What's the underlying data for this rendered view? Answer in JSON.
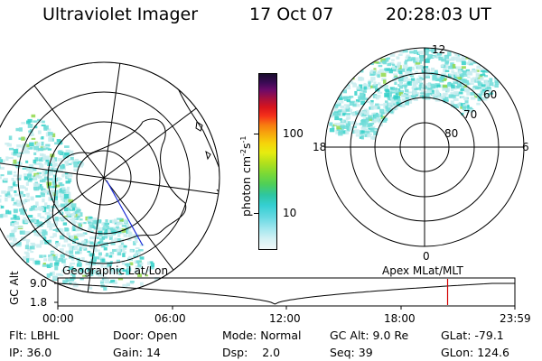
{
  "header": {
    "title": "Ultraviolet Imager",
    "date": "17 Oct 07",
    "time": "20:28:03 UT"
  },
  "left_map": {
    "label": "Geographic Lat/Lon"
  },
  "right_map": {
    "label": "Apex MLat/MLT",
    "mlt_labels": [
      "12",
      "18",
      "6",
      "0"
    ],
    "mlat_labels": [
      "60",
      "70",
      "80"
    ]
  },
  "colorbar": {
    "unit": "photon cm",
    "unit_exp1": "-2",
    "unit_mid": "s",
    "unit_exp2": "-1",
    "ticks": [
      "100",
      "10"
    ]
  },
  "altitude_strip": {
    "ylabel": "GC Alt",
    "y_ticks": [
      "9.0",
      "1.8"
    ],
    "x_ticks": [
      "00:00",
      "06:00",
      "12:00",
      "18:00",
      "23:59"
    ],
    "marker_time": "20:28"
  },
  "info": {
    "filter_label": "Flt:",
    "filter_value": "LBHL",
    "door_label": "Door:",
    "door_value": "Open",
    "mode_label": "Mode:",
    "mode_value": "Normal",
    "gcalt_label": "GC Alt:",
    "gcalt_value": "9.0 Re",
    "glat_label": "GLat:",
    "glat_value": "-79.1",
    "ip_label": "IP:",
    "ip_value": "36.0",
    "gain_label": "Gain:",
    "gain_value": "14",
    "dsp_label": "Dsp:",
    "dsp_value": "2.0",
    "seq_label": "Seq:",
    "seq_value": "39",
    "glon_label": "GLon:",
    "glon_value": "124.6"
  },
  "colors": {
    "aurora_light": "#c8ecee",
    "aurora_mid": "#6fdcd8",
    "aurora_strong": "#33d0c8",
    "aurora_peak": "#8fd84a",
    "marker": "#d40000",
    "track": "#1a2bd6"
  }
}
